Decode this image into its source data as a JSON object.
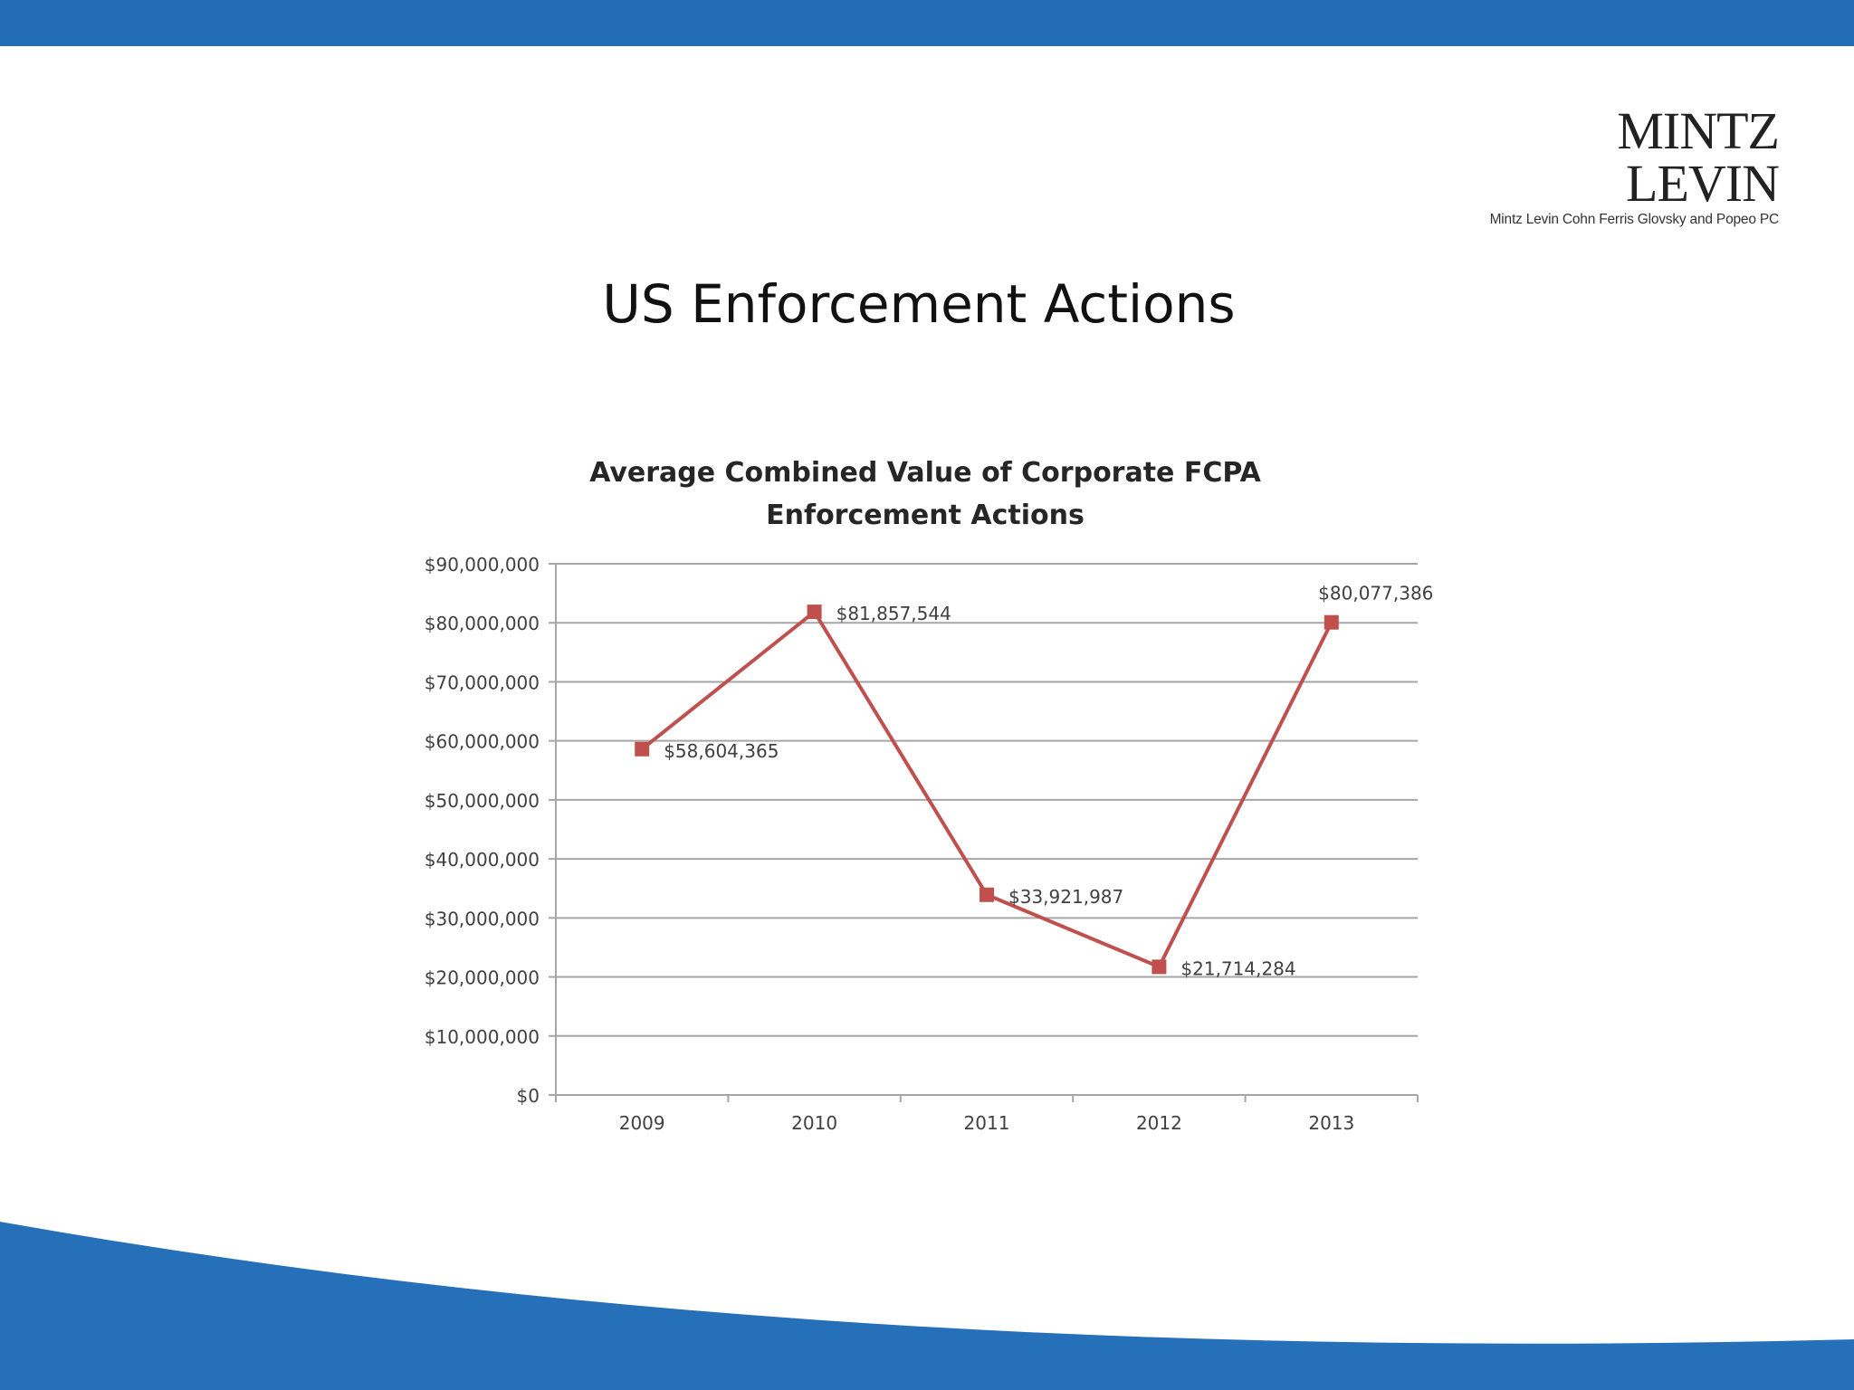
{
  "slide": {
    "title": "US Enforcement Actions"
  },
  "logo": {
    "name": "MINTZ LEVIN",
    "tagline": "Mintz Levin Cohn Ferris Glovsky and Popeo PC"
  },
  "colors": {
    "brand_blue": "#226db5",
    "series": "#c0504d",
    "grid": "#a6a6a6"
  },
  "chart_data": {
    "type": "line",
    "title": "Average Combined Value of Corporate FCPA",
    "title_line2": "Enforcement Actions",
    "categories": [
      "2009",
      "2010",
      "2011",
      "2012",
      "2013"
    ],
    "series": [
      {
        "values": [
          58604365,
          81857544,
          33921987,
          21714284,
          80077386
        ],
        "labels": [
          "$58,604,365",
          "$81,857,544",
          "$33,921,987",
          "$21,714,284",
          "$80,077,386"
        ],
        "marker": "square"
      }
    ],
    "ylim": [
      0,
      90000000
    ],
    "y_ticks": [
      0,
      10000000,
      20000000,
      30000000,
      40000000,
      50000000,
      60000000,
      70000000,
      80000000,
      90000000
    ],
    "y_tick_labels": [
      "$0",
      "$10,000,000",
      "$20,000,000",
      "$30,000,000",
      "$40,000,000",
      "$50,000,000",
      "$60,000,000",
      "$70,000,000",
      "$80,000,000",
      "$90,000,000"
    ],
    "grid": true,
    "legend": "none"
  }
}
